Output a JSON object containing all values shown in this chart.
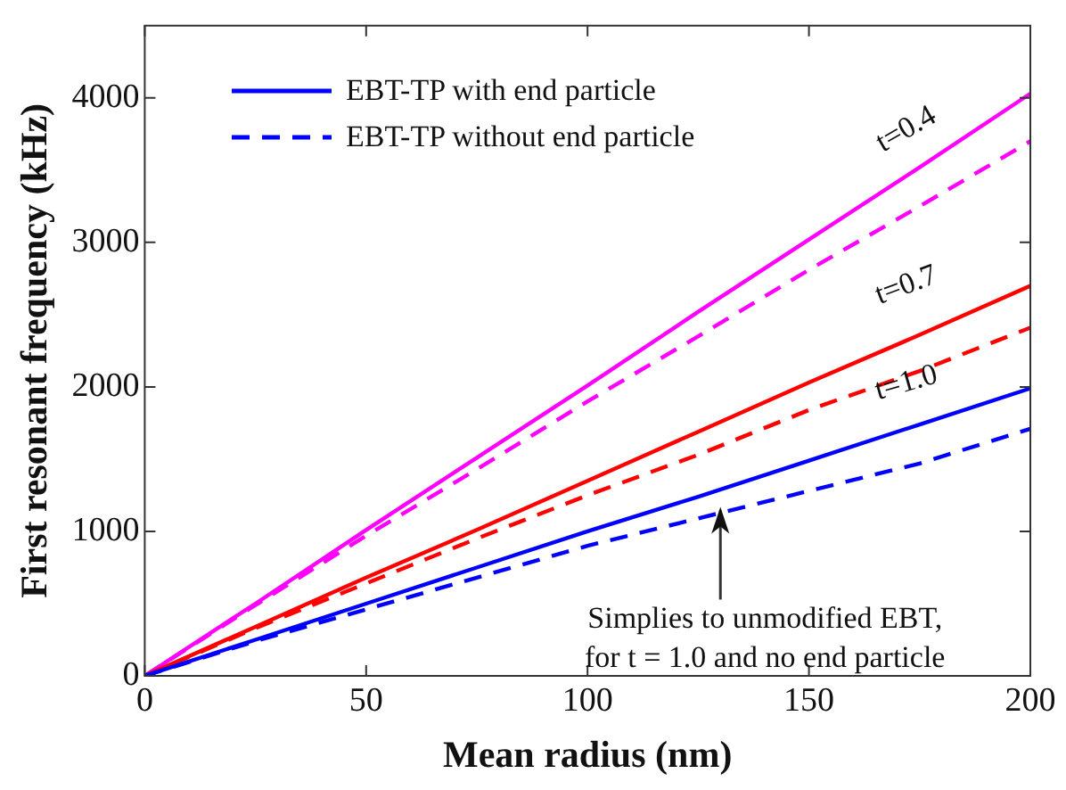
{
  "chart_data": {
    "type": "line",
    "xlabel": "Mean radius (nm)",
    "ylabel": "First resonant frequency (kHz)",
    "x": [
      0,
      25,
      50,
      75,
      100,
      125,
      150,
      175,
      200
    ],
    "series": [
      {
        "name": "EBT-TP with end particle",
        "color": "#0000ff",
        "line_style": "solid",
        "values": [
          0,
          250,
          500,
          750,
          1000,
          1240,
          1490,
          1740,
          1990
        ]
      },
      {
        "name": "EBT-TP without end particle",
        "color": "#0000ff",
        "line_style": "dashed",
        "values": [
          0,
          240,
          460,
          680,
          900,
          1090,
          1280,
          1470,
          1710
        ]
      },
      {
        "color": "#ff0000",
        "line_style": "solid",
        "values": [
          0,
          340,
          680,
          1010,
          1350,
          1690,
          2030,
          2360,
          2700
        ]
      },
      {
        "color": "#ff0000",
        "line_style": "dashed",
        "values": [
          0,
          330,
          640,
          950,
          1250,
          1530,
          1840,
          2110,
          2410
        ]
      },
      {
        "color": "#ff00ff",
        "line_style": "solid",
        "values": [
          0,
          500,
          1010,
          1510,
          2010,
          2520,
          3020,
          3520,
          4030
        ]
      },
      {
        "color": "#ff00ff",
        "line_style": "dashed",
        "values": [
          0,
          490,
          970,
          1430,
          1900,
          2350,
          2810,
          3250,
          3700
        ]
      }
    ],
    "xlim": [
      0,
      200
    ],
    "xticks": [
      0,
      50,
      100,
      150,
      200
    ],
    "ylim": [
      0,
      4500
    ],
    "yticks": [
      0,
      1000,
      2000,
      3000,
      4000
    ],
    "grid": false,
    "legend": "top left",
    "marker": "none",
    "annotations": [
      "t=0.4",
      "t=0.7",
      "t=1.0",
      {
        "text": "Simplies to unmodified EBT,\nfor t = 1.0 and no end particle",
        "x": 130,
        "y": 1170
      }
    ]
  }
}
